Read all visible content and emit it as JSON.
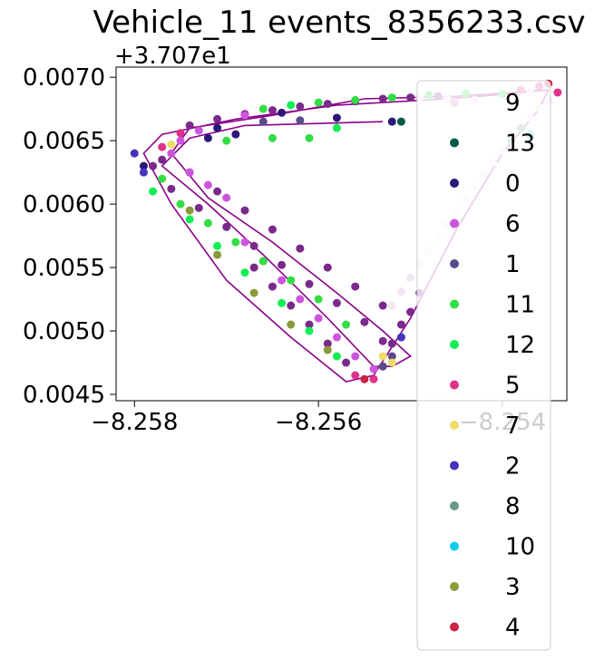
{
  "chart_data": {
    "type": "scatter",
    "title": "Vehicle_11 events_8356233.csv",
    "xlabel": "",
    "ylabel": "",
    "y_offset_label": "+3.707e1",
    "y_offset": 37.07,
    "xlim": [
      -8.2582,
      -8.2533
    ],
    "ylim": [
      0.00445,
      0.00708
    ],
    "x_ticks": [
      -8.258,
      -8.256,
      -8.254
    ],
    "x_tick_labels": [
      "−8.258",
      "−8.256",
      "−8.254"
    ],
    "y_ticks": [
      0.0045,
      0.005,
      0.0055,
      0.006,
      0.0065,
      0.007
    ],
    "y_tick_labels": [
      "0.0045",
      "0.0050",
      "0.0055",
      "0.0060",
      "0.0065",
      "0.0070"
    ],
    "grid": false,
    "legend_position": "right, extending below the axes",
    "route_line_color": "#8b008b",
    "route_path": [
      [
        -8.2553,
        0.00665
      ],
      [
        -8.2568,
        0.00662
      ],
      [
        -8.2574,
        0.00652
      ],
      [
        -8.2577,
        0.0063
      ],
      [
        -8.2572,
        0.006
      ],
      [
        -8.2566,
        0.0056
      ],
      [
        -8.2559,
        0.0051
      ],
      [
        -8.2554,
        0.00472
      ],
      [
        -8.2552,
        0.00472
      ],
      [
        -8.255,
        0.0048
      ],
      [
        -8.2553,
        0.005
      ],
      [
        -8.2558,
        0.0053
      ],
      [
        -8.2565,
        0.0057
      ],
      [
        -8.2572,
        0.00605
      ],
      [
        -8.2576,
        0.0064
      ],
      [
        -8.2574,
        0.0066
      ],
      [
        -8.2565,
        0.0067
      ],
      [
        -8.2555,
        0.00683
      ],
      [
        -8.2545,
        0.00685
      ],
      [
        -8.2539,
        0.00688
      ],
      [
        -8.2535,
        0.0069
      ],
      [
        -8.2536,
        0.00675
      ],
      [
        -8.254,
        0.0064
      ],
      [
        -8.2545,
        0.0058
      ],
      [
        -8.255,
        0.0051
      ],
      [
        -8.2554,
        0.00465
      ],
      [
        -8.2557,
        0.0046
      ],
      [
        -8.2563,
        0.00495
      ],
      [
        -8.257,
        0.0054
      ],
      [
        -8.2576,
        0.006
      ],
      [
        -8.2579,
        0.0064
      ],
      [
        -8.2577,
        0.00655
      ],
      [
        -8.2569,
        0.00667
      ],
      [
        -8.2558,
        0.00678
      ],
      [
        -8.2546,
        0.00683
      ],
      [
        -8.2539,
        0.00687
      ],
      [
        -8.2536,
        0.0069
      ]
    ],
    "series": [
      {
        "name": "9",
        "color": "#f4e6f3",
        "points": [
          [
            -8.2535,
            0.00682
          ],
          [
            -8.2536,
            0.00676
          ],
          [
            -8.2537,
            0.00668
          ],
          [
            -8.2538,
            0.0066
          ],
          [
            -8.2539,
            0.00651
          ],
          [
            -8.254,
            0.00642
          ],
          [
            -8.2541,
            0.00633
          ],
          [
            -8.2542,
            0.00624
          ],
          [
            -8.2543,
            0.00614
          ],
          [
            -8.2544,
            0.00604
          ],
          [
            -8.2545,
            0.00594
          ],
          [
            -8.2546,
            0.00584
          ],
          [
            -8.2547,
            0.00574
          ],
          [
            -8.2548,
            0.00563
          ],
          [
            -8.2549,
            0.00553
          ],
          [
            -8.255,
            0.00542
          ],
          [
            -8.2551,
            0.00531
          ],
          [
            -8.2552,
            0.0052
          ],
          [
            -8.2543,
            0.00682
          ],
          [
            -8.2546,
            0.00683
          ],
          [
            -8.2549,
            0.00684
          ],
          [
            -8.254,
            0.00686
          ],
          [
            -8.2537,
            0.00688
          ]
        ]
      },
      {
        "name": "13",
        "color": "#005a4a",
        "points": [
          [
            -8.2551,
            0.00665
          ]
        ]
      },
      {
        "name": "0",
        "color": "#2b1878",
        "points": [
          [
            -8.2569,
            0.00655
          ],
          [
            -8.2571,
            0.0066
          ],
          [
            -8.2558,
            0.00668
          ],
          [
            -8.2564,
            0.00672
          ],
          [
            -8.2572,
            0.00652
          ],
          [
            -8.2579,
            0.0063
          ],
          [
            -8.2552,
            0.00665
          ]
        ]
      },
      {
        "name": "6",
        "color": "#cc55dd",
        "points": [
          [
            -8.256,
            0.0051
          ],
          [
            -8.2562,
            0.00525
          ],
          [
            -8.2564,
            0.0054
          ],
          [
            -8.2566,
            0.00555
          ],
          [
            -8.2568,
            0.0057
          ],
          [
            -8.2558,
            0.00495
          ],
          [
            -8.2556,
            0.0048
          ],
          [
            -8.2554,
            0.0047
          ],
          [
            -8.257,
            0.00605
          ],
          [
            -8.2572,
            0.00615
          ],
          [
            -8.2574,
            0.00625
          ],
          [
            -8.2576,
            0.0064
          ],
          [
            -8.2575,
            0.0065
          ],
          [
            -8.2573,
            0.00658
          ],
          [
            -8.2568,
            0.0067
          ]
        ]
      },
      {
        "name": "1",
        "color": "#5a4a8a",
        "points": [
          [
            -8.2566,
            0.00665
          ],
          [
            -8.2562,
            0.00666
          ],
          [
            -8.2552,
            0.0048
          ],
          [
            -8.2553,
            0.00472
          ]
        ]
      },
      {
        "name": "11",
        "color": "#33dd44",
        "points": [
          [
            -8.256,
            0.0068
          ],
          [
            -8.2556,
            0.00682
          ],
          [
            -8.2552,
            0.00684
          ],
          [
            -8.2548,
            0.00686
          ],
          [
            -8.2544,
            0.00687
          ],
          [
            -8.254,
            0.00687
          ],
          [
            -8.2577,
            0.0062
          ],
          [
            -8.2575,
            0.006
          ],
          [
            -8.2572,
            0.00585
          ],
          [
            -8.2569,
            0.0057
          ],
          [
            -8.2566,
            0.00555
          ],
          [
            -8.2563,
            0.0054
          ],
          [
            -8.256,
            0.00525
          ],
          [
            -8.2557,
            0.00505
          ],
          [
            -8.257,
            0.0065
          ],
          [
            -8.2565,
            0.00652
          ],
          [
            -8.2561,
            0.00652
          ],
          [
            -8.2566,
            0.00675
          ]
        ]
      },
      {
        "name": "12",
        "color": "#11ee55",
        "points": [
          [
            -8.2578,
            0.0061
          ],
          [
            -8.2574,
            0.00588
          ],
          [
            -8.2571,
            0.00567
          ],
          [
            -8.2568,
            0.00546
          ],
          [
            -8.2564,
            0.00522
          ],
          [
            -8.2561,
            0.005
          ],
          [
            -8.2558,
            0.0048
          ],
          [
            -8.2563,
            0.00678
          ],
          [
            -8.2558,
            0.0066
          ]
        ]
      },
      {
        "name": "5",
        "color": "#dd3388",
        "points": [
          [
            -8.2554,
            0.00462
          ],
          [
            -8.2556,
            0.00465
          ],
          [
            -8.2575,
            0.00656
          ],
          [
            -8.2577,
            0.00645
          ],
          [
            -8.2536,
            0.00693
          ],
          [
            -8.2538,
            0.0069
          ],
          [
            -8.2534,
            0.00688
          ]
        ]
      },
      {
        "name": "7",
        "color": "#eedd66",
        "points": [
          [
            -8.2552,
            0.00475
          ],
          [
            -8.2553,
            0.0048
          ],
          [
            -8.2576,
            0.00647
          ]
        ]
      },
      {
        "name": "2",
        "color": "#4433bb",
        "points": [
          [
            -8.2579,
            0.00625
          ],
          [
            -8.258,
            0.0064
          ],
          [
            -8.2551,
            0.00495
          ]
        ]
      },
      {
        "name": "8",
        "color": "#6a9a88",
        "points": [
          [
            -8.2538,
            0.0066
          ],
          [
            -8.2539,
            0.0065
          ]
        ]
      },
      {
        "name": "10",
        "color": "#11ccee",
        "points": [
          [
            -8.2537,
            0.00655
          ]
        ]
      },
      {
        "name": "3",
        "color": "#8a9a3a",
        "points": [
          [
            -8.2571,
            0.0056
          ],
          [
            -8.2567,
            0.0053
          ],
          [
            -8.2563,
            0.00505
          ],
          [
            -8.2559,
            0.00485
          ],
          [
            -8.2574,
            0.00595
          ]
        ]
      },
      {
        "name": "4",
        "color": "#cc2244",
        "points": [
          [
            -8.2555,
            0.00462
          ],
          [
            -8.2535,
            0.00695
          ]
        ]
      }
    ],
    "extra_points": [
      {
        "color": "#7a2a8a",
        "points": [
          [
            -8.2578,
            0.0063
          ],
          [
            -8.2576,
            0.00612
          ],
          [
            -8.2573,
            0.00597
          ],
          [
            -8.257,
            0.00582
          ],
          [
            -8.2567,
            0.00567
          ],
          [
            -8.2564,
            0.00552
          ],
          [
            -8.2561,
            0.00537
          ],
          [
            -8.2558,
            0.00522
          ],
          [
            -8.2555,
            0.00507
          ],
          [
            -8.2553,
            0.00492
          ],
          [
            -8.2551,
            0.00505
          ],
          [
            -8.2553,
            0.0052
          ],
          [
            -8.2556,
            0.00535
          ],
          [
            -8.2559,
            0.0055
          ],
          [
            -8.2562,
            0.00565
          ],
          [
            -8.2565,
            0.0058
          ],
          [
            -8.2568,
            0.00595
          ],
          [
            -8.2571,
            0.0061
          ],
          [
            -8.2574,
            0.00625
          ],
          [
            -8.2577,
            0.00635
          ],
          [
            -8.2574,
            0.00662
          ],
          [
            -8.2571,
            0.00667
          ],
          [
            -8.2568,
            0.00671
          ],
          [
            -8.2565,
            0.00674
          ],
          [
            -8.2562,
            0.00677
          ],
          [
            -8.2559,
            0.00679
          ],
          [
            -8.2556,
            0.00681
          ],
          [
            -8.2553,
            0.00683
          ],
          [
            -8.255,
            0.00684
          ],
          [
            -8.2547,
            0.00685
          ],
          [
            -8.2557,
            0.00475
          ],
          [
            -8.2559,
            0.0049
          ],
          [
            -8.2561,
            0.00505
          ],
          [
            -8.2563,
            0.0052
          ],
          [
            -8.2565,
            0.00535
          ],
          [
            -8.2567,
            0.0055
          ],
          [
            -8.2552,
            0.0049
          ],
          [
            -8.255,
            0.00515
          ],
          [
            -8.2549,
            0.0053
          ]
        ]
      }
    ]
  }
}
